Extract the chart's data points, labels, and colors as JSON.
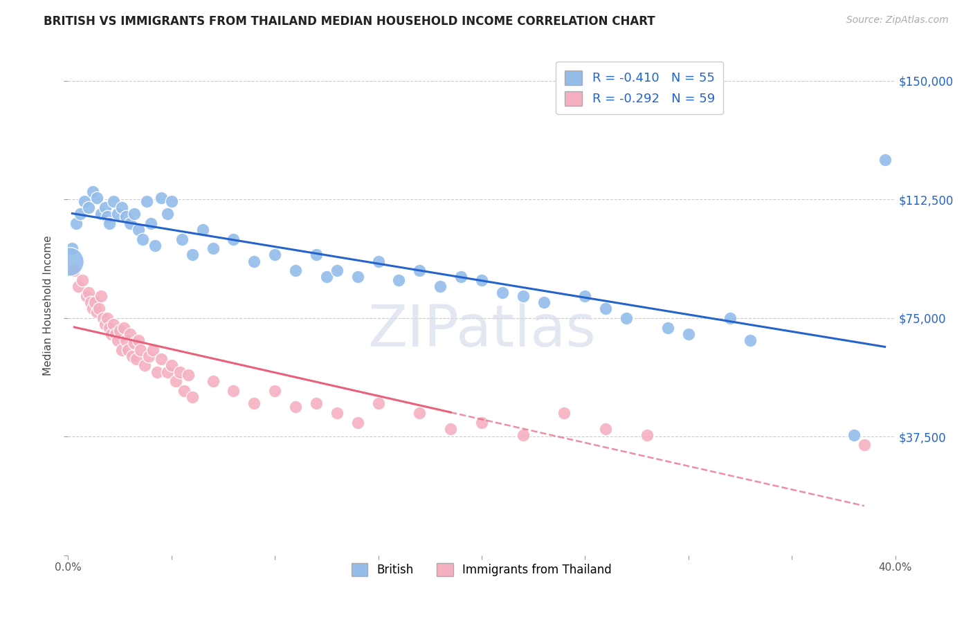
{
  "title": "BRITISH VS IMMIGRANTS FROM THAILAND MEDIAN HOUSEHOLD INCOME CORRELATION CHART",
  "source": "Source: ZipAtlas.com",
  "ylabel": "Median Household Income",
  "yticks": [
    0,
    37500,
    75000,
    112500,
    150000
  ],
  "ytick_labels": [
    "",
    "$37,500",
    "$75,000",
    "$112,500",
    "$150,000"
  ],
  "xmin": 0.0,
  "xmax": 40.0,
  "ymin": 18000,
  "ymax": 158000,
  "british_R": -0.41,
  "british_N": 55,
  "thailand_R": -0.292,
  "thailand_N": 59,
  "british_color": "#93bce9",
  "thailand_color": "#f5afc0",
  "british_line_color": "#2563cc",
  "thailand_line_color": "#e8607a",
  "legend_label_british": "British",
  "legend_label_thailand": "Immigrants from Thailand",
  "british_x": [
    0.2,
    0.4,
    0.6,
    0.8,
    1.0,
    1.2,
    1.4,
    1.6,
    1.8,
    1.9,
    2.0,
    2.2,
    2.4,
    2.6,
    2.8,
    3.0,
    3.2,
    3.4,
    3.6,
    3.8,
    4.0,
    4.2,
    4.5,
    4.8,
    5.0,
    5.5,
    6.0,
    6.5,
    7.0,
    8.0,
    9.0,
    10.0,
    11.0,
    12.0,
    12.5,
    13.0,
    14.0,
    15.0,
    16.0,
    17.0,
    18.0,
    19.0,
    20.0,
    21.0,
    22.0,
    23.0,
    25.0,
    26.0,
    27.0,
    29.0,
    30.0,
    32.0,
    33.0,
    38.0,
    39.5
  ],
  "british_y": [
    97000,
    105000,
    108000,
    112000,
    110000,
    115000,
    113000,
    108000,
    110000,
    107000,
    105000,
    112000,
    108000,
    110000,
    107000,
    105000,
    108000,
    103000,
    100000,
    112000,
    105000,
    98000,
    113000,
    108000,
    112000,
    100000,
    95000,
    103000,
    97000,
    100000,
    93000,
    95000,
    90000,
    95000,
    88000,
    90000,
    88000,
    93000,
    87000,
    90000,
    85000,
    88000,
    87000,
    83000,
    82000,
    80000,
    82000,
    78000,
    75000,
    72000,
    70000,
    75000,
    68000,
    38000,
    125000
  ],
  "thailand_x": [
    0.3,
    0.5,
    0.7,
    0.9,
    1.0,
    1.1,
    1.2,
    1.3,
    1.4,
    1.5,
    1.6,
    1.7,
    1.8,
    1.9,
    2.0,
    2.1,
    2.2,
    2.3,
    2.4,
    2.5,
    2.6,
    2.7,
    2.8,
    2.9,
    3.0,
    3.1,
    3.2,
    3.3,
    3.4,
    3.5,
    3.7,
    3.9,
    4.1,
    4.3,
    4.5,
    4.8,
    5.0,
    5.2,
    5.4,
    5.6,
    5.8,
    6.0,
    7.0,
    8.0,
    9.0,
    10.0,
    11.0,
    12.0,
    13.0,
    14.0,
    15.0,
    17.0,
    18.5,
    20.0,
    22.0,
    24.0,
    26.0,
    28.0,
    38.5
  ],
  "thailand_y": [
    90000,
    85000,
    87000,
    82000,
    83000,
    80000,
    78000,
    80000,
    77000,
    78000,
    82000,
    75000,
    73000,
    75000,
    72000,
    70000,
    73000,
    70000,
    68000,
    71000,
    65000,
    72000,
    68000,
    65000,
    70000,
    63000,
    67000,
    62000,
    68000,
    65000,
    60000,
    63000,
    65000,
    58000,
    62000,
    58000,
    60000,
    55000,
    58000,
    52000,
    57000,
    50000,
    55000,
    52000,
    48000,
    52000,
    47000,
    48000,
    45000,
    42000,
    48000,
    45000,
    40000,
    42000,
    38000,
    45000,
    40000,
    38000,
    35000
  ],
  "thailand_solid_end_x": 18.5,
  "watermark_text": "ZIPatlas",
  "background_color": "#ffffff",
  "grid_color": "#cccccc",
  "title_fontsize": 12,
  "source_fontsize": 10,
  "ylabel_fontsize": 11,
  "tick_fontsize": 11,
  "legend_fontsize": 13
}
